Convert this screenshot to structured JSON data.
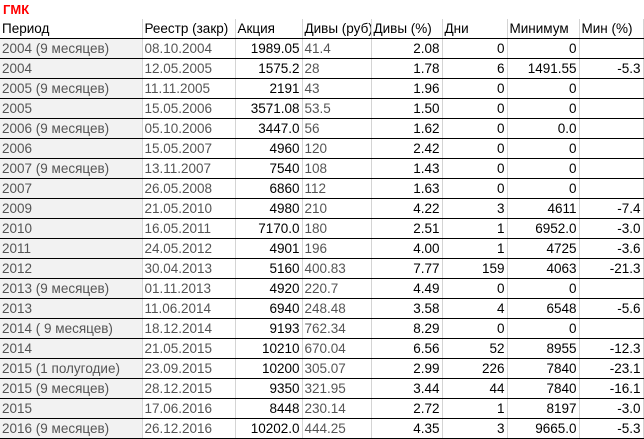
{
  "title": "ГМК",
  "headers": [
    "Период",
    "Реестр (закр)",
    "Акция",
    "Дивы (руб)",
    "Дивы (%)",
    "Дни",
    "Минимум",
    "Мин (%)"
  ],
  "rows": [
    [
      "2004 (9 месяцев)",
      "08.10.2004",
      "1989.05",
      "41.4",
      "2.08",
      "0",
      "0",
      ""
    ],
    [
      "2004",
      "12.05.2005",
      "1575.2",
      "28",
      "1.78",
      "6",
      "1491.55",
      "-5.3"
    ],
    [
      "2005 (9 месяцев)",
      "11.11.2005",
      "2191",
      "43",
      "1.96",
      "0",
      "0",
      ""
    ],
    [
      "2005",
      "15.05.2006",
      "3571.08",
      "53.5",
      "1.50",
      "0",
      "0",
      ""
    ],
    [
      "2006 (9 месяцев)",
      "05.10.2006",
      "3447.0",
      "56",
      "1.62",
      "0",
      "0.0",
      ""
    ],
    [
      "2006",
      "15.05.2007",
      "4960",
      "120",
      "2.42",
      "0",
      "0",
      ""
    ],
    [
      "2007 (9 месяцев)",
      "13.11.2007",
      "7540",
      "108",
      "1.43",
      "0",
      "0",
      ""
    ],
    [
      "2007",
      "26.05.2008",
      "6860",
      "112",
      "1.63",
      "0",
      "0",
      ""
    ],
    [
      "2009",
      "21.05.2010",
      "4980",
      "210",
      "4.22",
      "3",
      "4611",
      "-7.4"
    ],
    [
      "2010",
      "16.05.2011",
      "7170.0",
      "180",
      "2.51",
      "1",
      "6952.0",
      "-3.0"
    ],
    [
      "2011",
      "24.05.2012",
      "4901",
      "196",
      "4.00",
      "1",
      "4725",
      "-3.6"
    ],
    [
      "2012",
      "30.04.2013",
      "5160",
      "400.83",
      "7.77",
      "159",
      "4063",
      "-21.3"
    ],
    [
      "2013 (9 месяцев)",
      "01.11.2013",
      "4920",
      "220.7",
      "4.49",
      "0",
      "0",
      ""
    ],
    [
      "2013",
      "11.06.2014",
      "6940",
      "248.48",
      "3.58",
      "4",
      "6548",
      "-5.6"
    ],
    [
      "2014 ( 9 месяцев)",
      "18.12.2014",
      "9193",
      "762.34",
      "8.29",
      "0",
      "0",
      ""
    ],
    [
      "2014",
      "21.05.2015",
      "10210",
      "670.04",
      "6.56",
      "52",
      "8955",
      "-12.3"
    ],
    [
      "2015 (1 полугодие)",
      "23.09.2015",
      "10200",
      "305.07",
      "2.99",
      "226",
      "7840",
      "-23.1"
    ],
    [
      "2015 (9 месяцев)",
      "28.12.2015",
      "9350",
      "321.95",
      "3.44",
      "44",
      "7840",
      "-16.1"
    ],
    [
      "2015",
      "17.06.2016",
      "8448",
      "230.14",
      "2.72",
      "1",
      "8197",
      "-3.0"
    ],
    [
      "2016 (9 месяцев)",
      "26.12.2016",
      "10202.0",
      "444.25",
      "4.35",
      "3",
      "9665.0",
      "-5.3"
    ]
  ],
  "colors": {
    "title": "#ff0000",
    "grid": "#d4d4d4",
    "row_border": "#000000",
    "muted_text": "#555555"
  }
}
